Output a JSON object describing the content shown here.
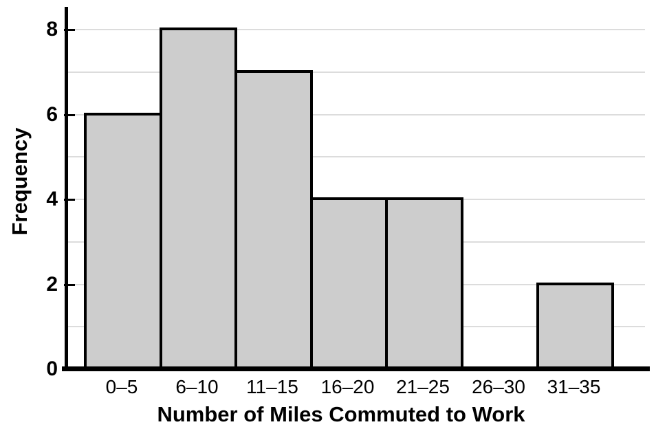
{
  "chart_data": {
    "type": "bar",
    "subtype": "histogram",
    "title": "",
    "xlabel": "Number of Miles Commuted to Work",
    "ylabel": "Frequency",
    "categories": [
      "0–5",
      "6–10",
      "11–15",
      "16–20",
      "21–25",
      "26–30",
      "31–35"
    ],
    "values": [
      6,
      8,
      7,
      4,
      4,
      0,
      2
    ],
    "ylim": [
      0,
      8
    ],
    "ytick_values": [
      0,
      2,
      4,
      6,
      8
    ],
    "ytick_labels": [
      "0",
      "2",
      "4",
      "6",
      "8"
    ],
    "gridlines_at": [
      1,
      2,
      3,
      4,
      5,
      6,
      7,
      8
    ],
    "grid": "horizontal",
    "legend_position": "none",
    "bars_touching": true,
    "colors": {
      "bar_fill": "#cdcdcd",
      "bar_border": "#000000",
      "gridline": "#dcdcdc",
      "axis": "#000000",
      "text": "#000000",
      "background": "#ffffff"
    }
  }
}
